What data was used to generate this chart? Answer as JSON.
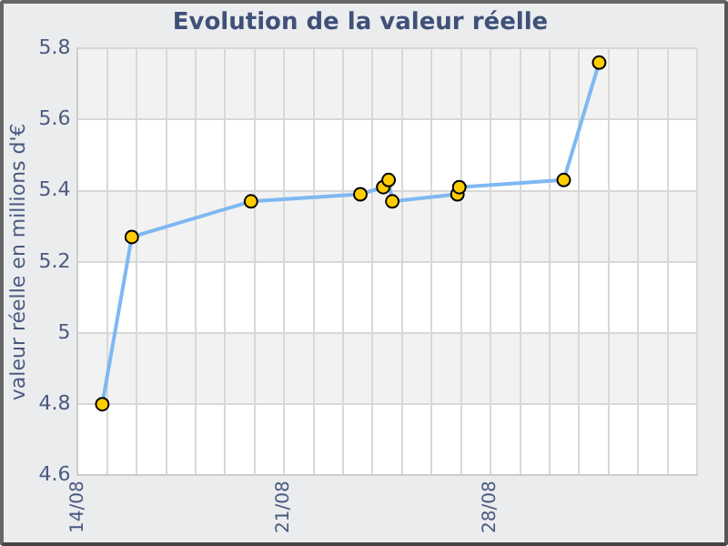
{
  "chart_data": {
    "type": "line",
    "title": "Evolution de la valeur réelle",
    "ylabel": "valeur réelle en millions d'€",
    "x": [
      "--08-14T20:00",
      "--08-15T20:00",
      "--08-19T21:00",
      "--08-23T14:00",
      "--08-24T08:40",
      "--08-24T13:00",
      "--08-24T16:00",
      "--08-26T21:00",
      "--08-26T22:30",
      "--08-30T11:30",
      "--08-31T16:20"
    ],
    "series": [
      {
        "color": "#7fb8f2",
        "values": [
          4.8,
          5.27,
          5.37,
          5.39,
          5.41,
          5.43,
          5.37,
          5.39,
          5.41,
          5.43,
          5.76
        ]
      }
    ],
    "xlim": [
      "--08-14",
      "--09-04"
    ],
    "xticks": [
      {
        "value": "--08-14",
        "label": "14/08"
      },
      {
        "value": "--08-15",
        "label": null
      },
      {
        "value": "--08-16",
        "label": null
      },
      {
        "value": "--08-17",
        "label": null
      },
      {
        "value": "--08-18",
        "label": null
      },
      {
        "value": "--08-19",
        "label": null
      },
      {
        "value": "--08-20",
        "label": null
      },
      {
        "value": "--08-21",
        "label": "21/08"
      },
      {
        "value": "--08-22",
        "label": null
      },
      {
        "value": "--08-23",
        "label": null
      },
      {
        "value": "--08-24",
        "label": null
      },
      {
        "value": "--08-25",
        "label": null
      },
      {
        "value": "--08-26",
        "label": null
      },
      {
        "value": "--08-27",
        "label": null
      },
      {
        "value": "--08-28",
        "label": "28/08"
      },
      {
        "value": "--08-29",
        "label": null
      },
      {
        "value": "--08-30",
        "label": null
      },
      {
        "value": "--08-31",
        "label": null
      },
      {
        "value": "--09-01",
        "label": null
      },
      {
        "value": "--09-02",
        "label": null
      },
      {
        "value": "--09-03",
        "label": null
      },
      {
        "value": "--09-04",
        "label": null
      }
    ],
    "ylim": [
      4.6,
      5.8
    ],
    "yticks": [
      4.6,
      4.8,
      5,
      5.2,
      5.4,
      5.6,
      5.8
    ],
    "grid": true,
    "marker": "circle",
    "line_style": "solid"
  }
}
